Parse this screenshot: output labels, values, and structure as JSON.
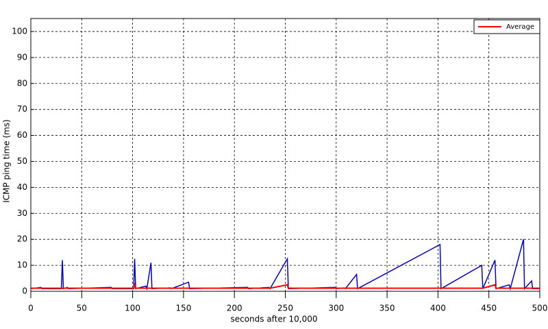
{
  "chart_data": {
    "type": "line",
    "xlabel": "seconds after 10,000",
    "ylabel": "ICMP ping time (ms)",
    "x": [
      0,
      10,
      11,
      30,
      31,
      32,
      36,
      37,
      79,
      80,
      101,
      102,
      103,
      113,
      114,
      118,
      119,
      137,
      138,
      155,
      156,
      213,
      214,
      234,
      235,
      252,
      253,
      299,
      300,
      308,
      309,
      320,
      321,
      402,
      403,
      443,
      444,
      456,
      457,
      470,
      471,
      484,
      485,
      492,
      493,
      500
    ],
    "series": [
      {
        "color": "#0000cc",
        "values": [
          1,
          1.5,
          1,
          1,
          12,
          1,
          1.5,
          1,
          1.5,
          1,
          1,
          12.5,
          1,
          2,
          1,
          11,
          1,
          1.3,
          1,
          3.5,
          1,
          1.5,
          1,
          1.5,
          1,
          12.5,
          1,
          1.5,
          1,
          1.3,
          1,
          6.5,
          1,
          18,
          1,
          10,
          1,
          12,
          1,
          2.5,
          1,
          20,
          1,
          4,
          1,
          1
        ]
      },
      {
        "name": "Average",
        "color": "#ff0000",
        "values": [
          1.2,
          1.2,
          1.2,
          1.2,
          1.2,
          1.2,
          1.2,
          1.2,
          1.2,
          1.2,
          1.2,
          2.5,
          1.2,
          1.2,
          1.2,
          1.2,
          1.2,
          1.2,
          1.2,
          1.2,
          1.2,
          1.2,
          1.2,
          1.2,
          1.2,
          2.5,
          1.2,
          1.2,
          1.2,
          1.2,
          1.2,
          1.2,
          1.2,
          1.2,
          1.2,
          1.2,
          1.2,
          2.5,
          1.2,
          1.2,
          1.2,
          1.2,
          1.2,
          1.2,
          1.2,
          1.2
        ]
      }
    ],
    "xlim": [
      0,
      500
    ],
    "xticks": [
      0,
      50,
      100,
      150,
      200,
      250,
      300,
      350,
      400,
      450,
      500
    ],
    "ylim": [
      0,
      105
    ],
    "yticks": [
      0,
      10,
      20,
      30,
      40,
      50,
      60,
      70,
      80,
      90,
      100
    ],
    "grid": true,
    "legend": "upper right"
  }
}
